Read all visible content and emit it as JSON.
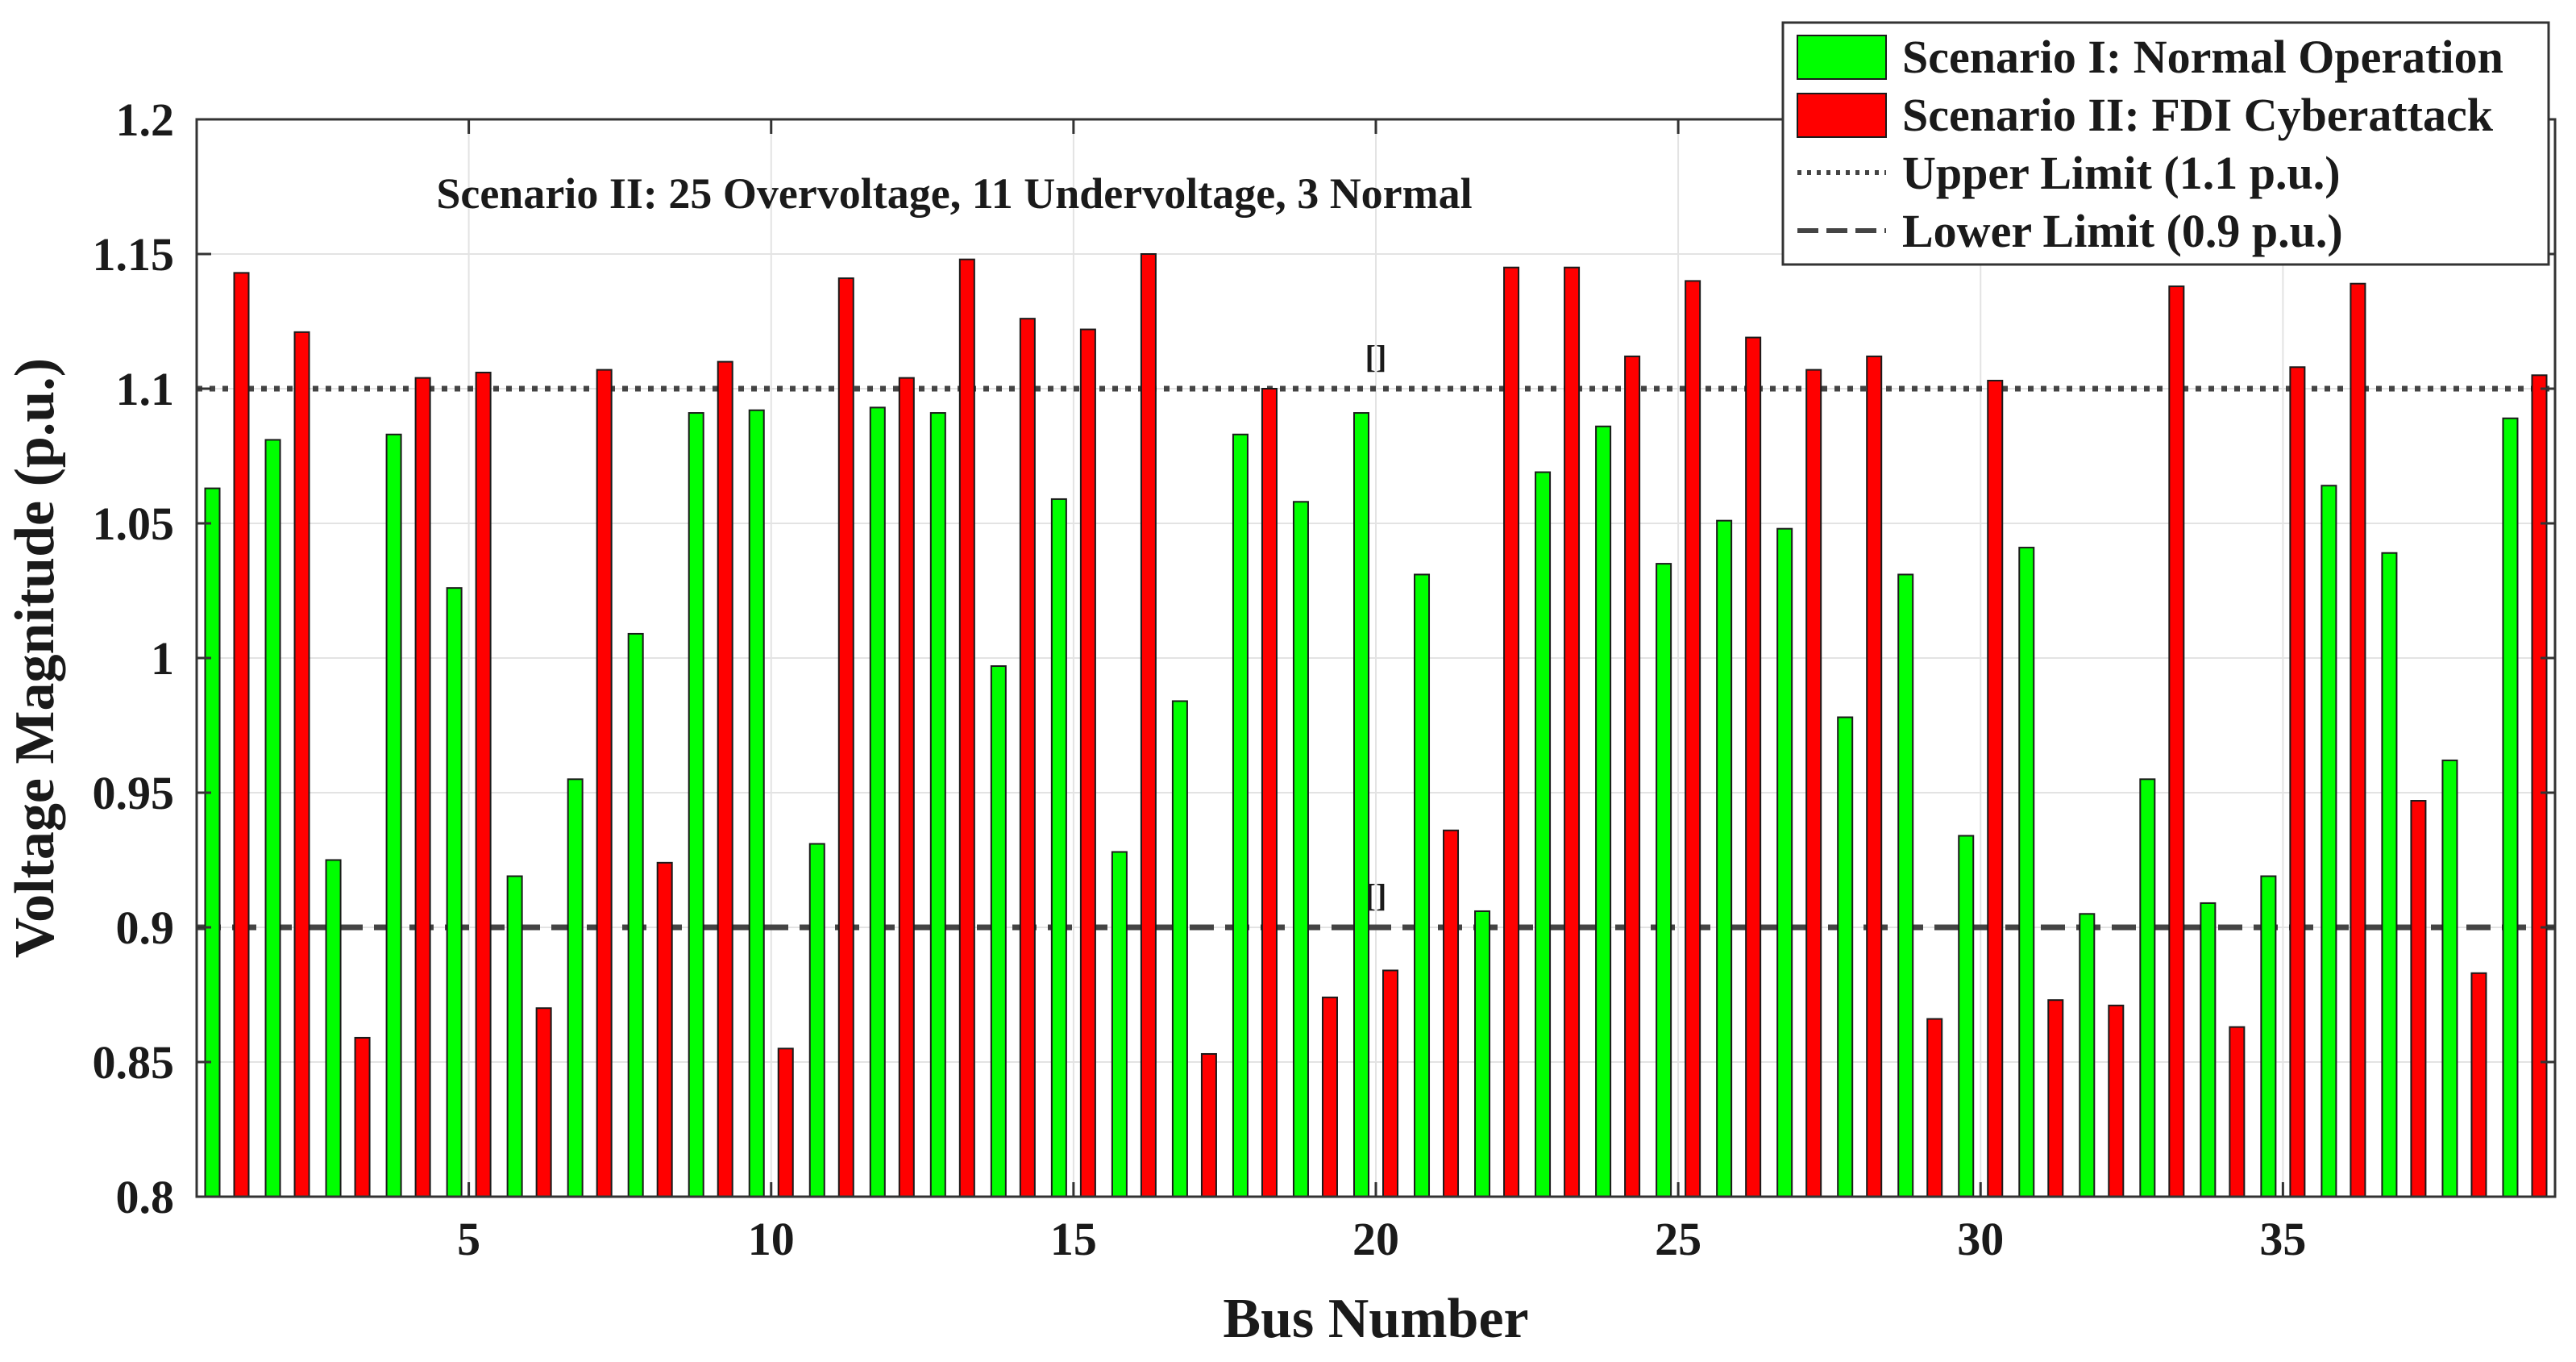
{
  "chart_data": {
    "type": "bar",
    "title": "",
    "annotation": "Scenario II: 25 Overvoltage, 11 Undervoltage, 3 Normal",
    "xlabel": "Bus Number",
    "ylabel": "Voltage Magnitude (p.u.)",
    "xlim": [
      0.5,
      39.5
    ],
    "ylim": [
      0.8,
      1.2
    ],
    "grid": true,
    "legend_position": "top-right",
    "x_tick_labels": [
      "5",
      "10",
      "15",
      "20",
      "25",
      "30",
      "35"
    ],
    "y_tick_labels": [
      "0.8",
      "0.85",
      "0.9",
      "0.95",
      "1",
      "1.05",
      "1.1",
      "1.15",
      "1.2"
    ],
    "categories": [
      1,
      2,
      3,
      4,
      5,
      6,
      7,
      8,
      9,
      10,
      11,
      12,
      13,
      14,
      15,
      16,
      17,
      18,
      19,
      20,
      21,
      22,
      23,
      24,
      25,
      26,
      27,
      28,
      29,
      30,
      31,
      32,
      33,
      34,
      35,
      36,
      37,
      38,
      39
    ],
    "series": [
      {
        "name": "Scenario I: Normal Operation",
        "color": "#00ff00",
        "values": [
          1.063,
          1.081,
          0.925,
          1.083,
          1.026,
          0.919,
          0.955,
          1.009,
          1.091,
          1.092,
          0.931,
          1.093,
          1.091,
          0.997,
          1.059,
          0.928,
          0.984,
          1.083,
          1.058,
          1.091,
          1.031,
          0.906,
          1.069,
          1.086,
          1.035,
          1.051,
          1.048,
          0.978,
          1.031,
          0.934,
          1.041,
          0.905,
          0.955,
          0.909,
          0.919,
          1.064,
          1.039,
          0.962,
          1.089
        ]
      },
      {
        "name": "Scenario II: FDI Cyberattack",
        "color": "#ff0000",
        "values": [
          1.143,
          1.121,
          0.859,
          1.104,
          1.106,
          0.87,
          1.107,
          0.924,
          1.11,
          0.855,
          1.141,
          1.104,
          1.148,
          1.126,
          1.122,
          1.15,
          0.853,
          1.1,
          0.874,
          0.884,
          0.936,
          1.145,
          1.145,
          1.112,
          1.14,
          1.119,
          1.107,
          1.112,
          0.866,
          1.103,
          0.873,
          0.871,
          1.138,
          0.863,
          1.108,
          1.139,
          0.947,
          0.883,
          1.105
        ]
      }
    ],
    "reference_lines": [
      {
        "name": "Upper Limit (1.1 p.u.)",
        "value": 1.1,
        "style": "dotted",
        "color": "#444444",
        "marker": "[]"
      },
      {
        "name": "Lower Limit (0.9 p.u.)",
        "value": 0.9,
        "style": "dashed",
        "color": "#444444",
        "marker": "[]"
      }
    ]
  }
}
